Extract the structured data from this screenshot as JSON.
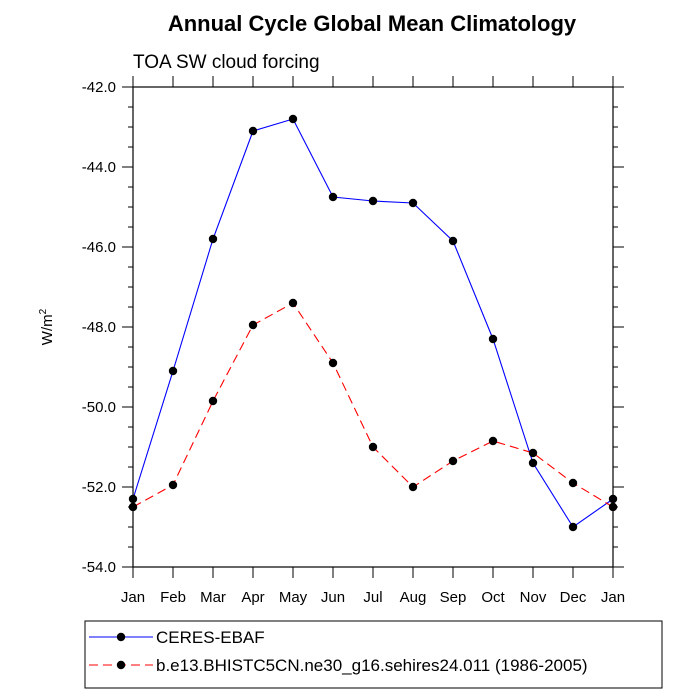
{
  "chart_data": {
    "type": "line",
    "title": "Annual Cycle Global Mean Climatology",
    "subtitle": "TOA SW cloud forcing",
    "ylabel": "W/m",
    "ylabel_sup": "2",
    "xlabel": "",
    "ylim": [
      -54.0,
      -42.0
    ],
    "yticks": [
      -54.0,
      -52.0,
      -50.0,
      -48.0,
      -46.0,
      -44.0,
      -42.0
    ],
    "ytick_labels": [
      "-54.0",
      "-52.0",
      "-50.0",
      "-48.0",
      "-46.0",
      "-44.0",
      "-42.0"
    ],
    "categories": [
      "Jan",
      "Feb",
      "Mar",
      "Apr",
      "May",
      "Jun",
      "Jul",
      "Aug",
      "Sep",
      "Oct",
      "Nov",
      "Dec",
      "Jan"
    ],
    "legend_position": "bottom",
    "series": [
      {
        "name": "CERES-EBAF",
        "color": "#0000ff",
        "dash": "solid",
        "values": [
          -52.3,
          -49.1,
          -45.8,
          -43.1,
          -42.8,
          -44.75,
          -44.85,
          -44.9,
          -45.85,
          -48.3,
          -51.4,
          -53.0,
          -52.3
        ]
      },
      {
        "name": "b.e13.BHISTC5CN.ne30_g16.sehires24.011 (1986-2005)",
        "color": "#ff0000",
        "dash": "dashed",
        "values": [
          -52.5,
          -51.95,
          -49.85,
          -47.95,
          -47.4,
          -48.9,
          -51.0,
          -52.0,
          -51.35,
          -50.85,
          -51.15,
          -51.9,
          -52.5
        ]
      }
    ]
  }
}
